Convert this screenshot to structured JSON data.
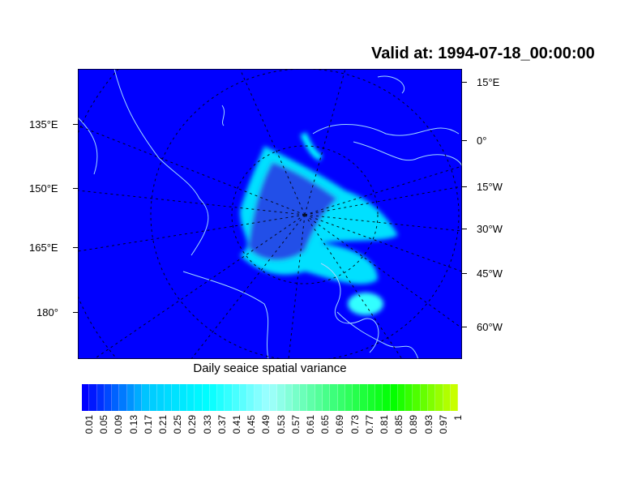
{
  "title": "Valid at: 1994-07-18_00:00:00",
  "map": {
    "projection": "polar stereographic (north)",
    "background_color": "#0000ff",
    "coastline_color": "#a0d8ff",
    "left_labels": [
      "135°E",
      "150°E",
      "165°E",
      "180°"
    ],
    "right_labels": [
      "15°E",
      "0°",
      "15°W",
      "30°W",
      "45°W",
      "60°W"
    ]
  },
  "colorbar": {
    "title": "Daily seaice spatial variance",
    "labels": [
      "0.01",
      "0.05",
      "0.09",
      "0.13",
      "0.17",
      "0.21",
      "0.25",
      "0.29",
      "0.33",
      "0.37",
      "0.41",
      "0.45",
      "0.49",
      "0.53",
      "0.57",
      "0.61",
      "0.65",
      "0.69",
      "0.73",
      "0.77",
      "0.81",
      "0.85",
      "0.89",
      "0.93",
      "0.97",
      "1"
    ],
    "color_stops": [
      "#0000ff",
      "#00c8ff",
      "#00ffff",
      "#a0ffff",
      "#40ff80",
      "#00ff00",
      "#c8ff00"
    ]
  }
}
